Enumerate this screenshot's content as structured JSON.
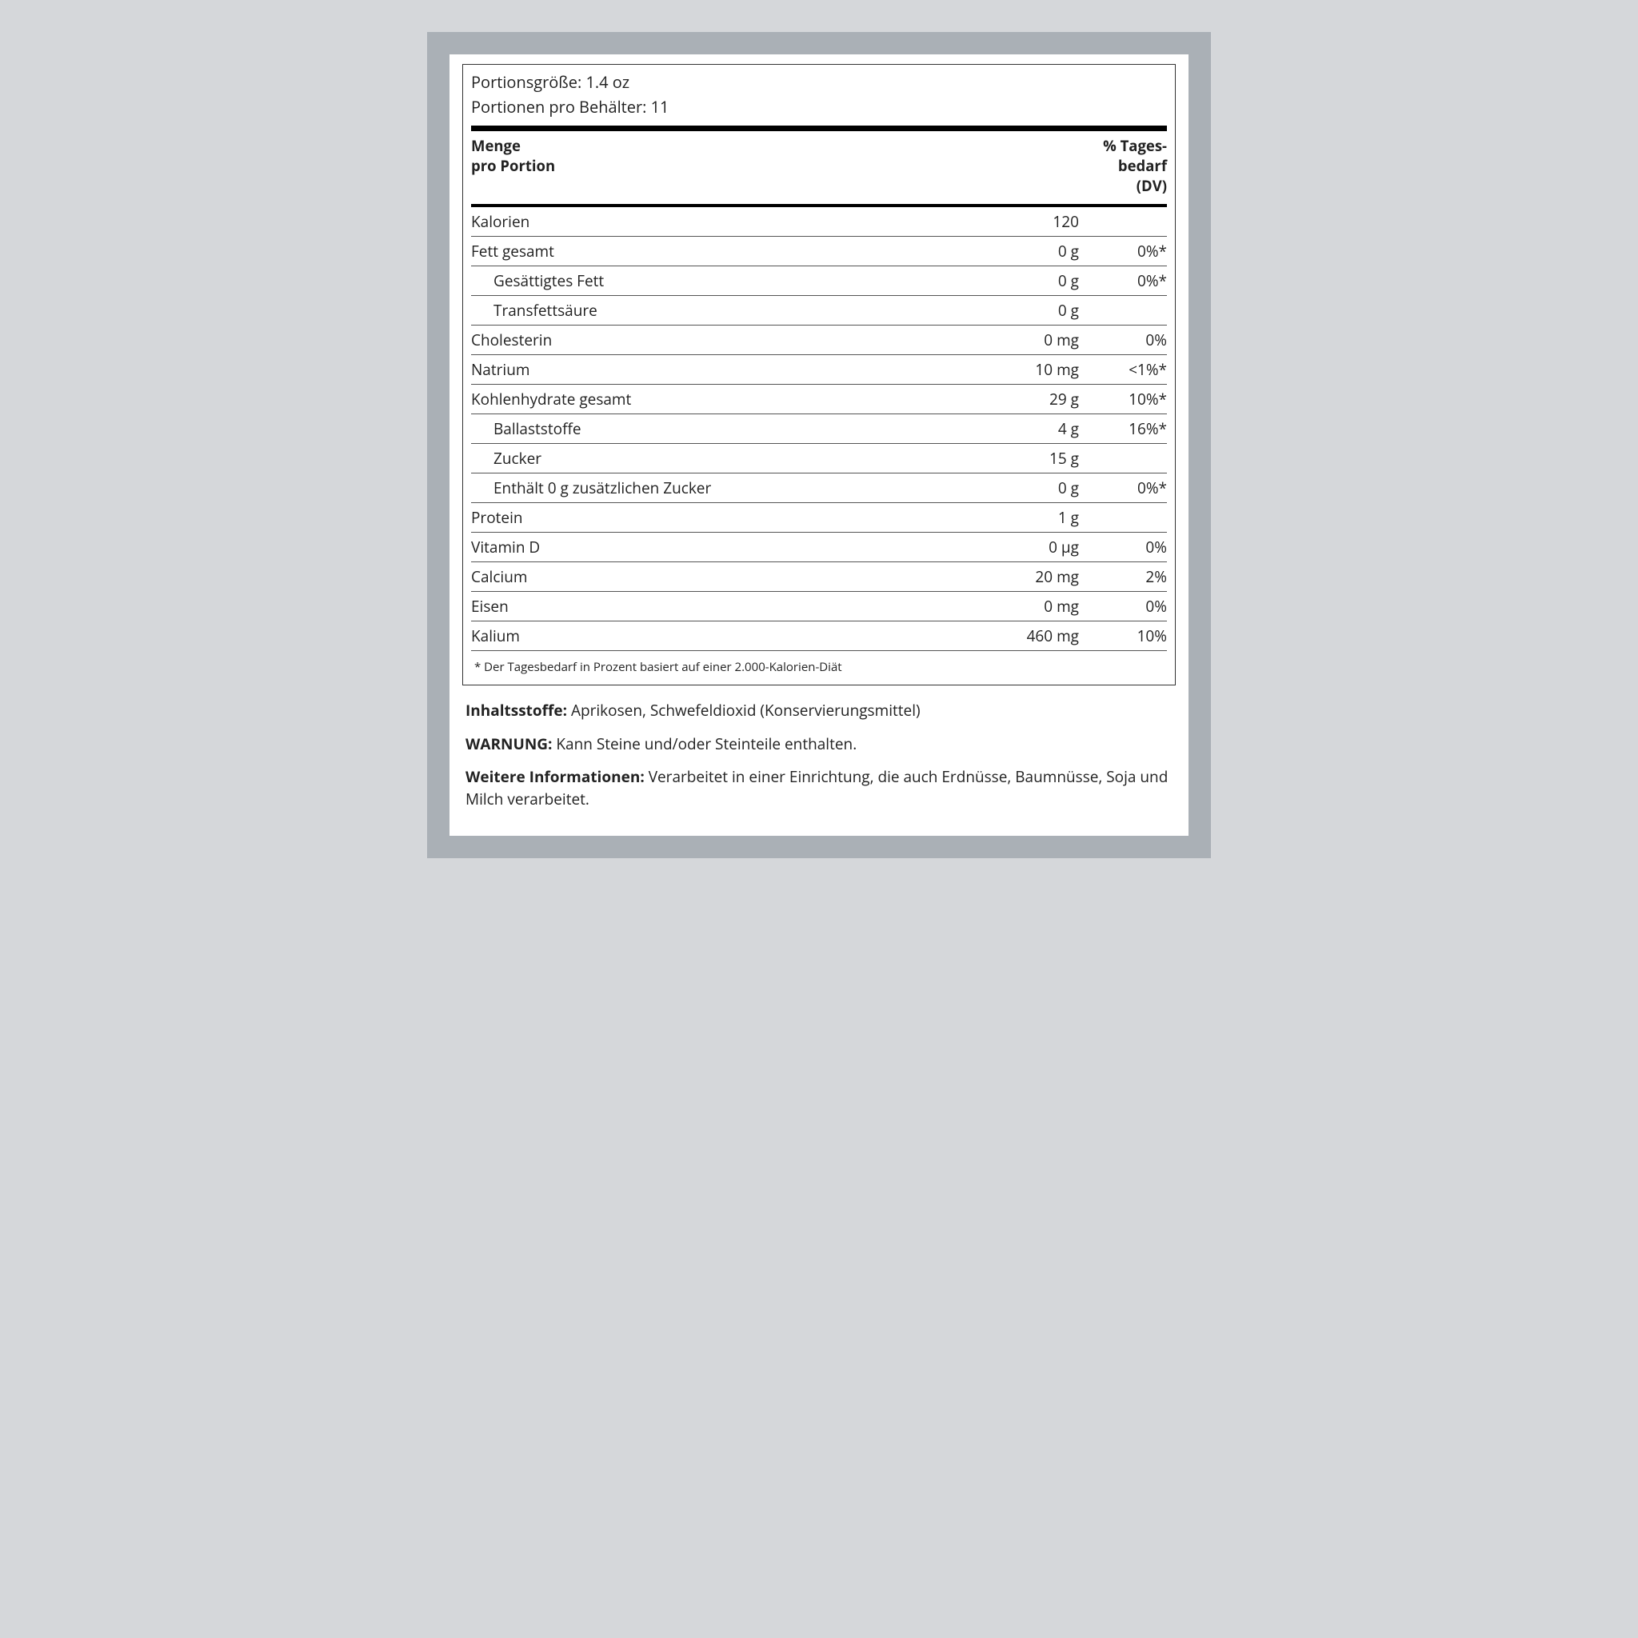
{
  "serving": {
    "size_label": "Portionsgröße:",
    "size_value": "1.4 oz",
    "per_container_label": "Portionen pro Behälter:",
    "per_container_value": "11"
  },
  "header": {
    "left": "Menge\npro Portion",
    "right": "% Tages-\nbedarf\n(DV)"
  },
  "rows": [
    {
      "label": "Kalorien",
      "amount": "120",
      "dv": "",
      "sub": false
    },
    {
      "label": "Fett gesamt",
      "amount": "0 g",
      "dv": "0%*",
      "sub": false
    },
    {
      "label": "Gesättigtes Fett",
      "amount": "0 g",
      "dv": "0%*",
      "sub": true
    },
    {
      "label": "Transfettsäure",
      "amount": "0 g",
      "dv": "",
      "sub": true
    },
    {
      "label": "Cholesterin",
      "amount": "0 mg",
      "dv": "0%",
      "sub": false
    },
    {
      "label": "Natrium",
      "amount": "10 mg",
      "dv": "<1%*",
      "sub": false
    },
    {
      "label": "Kohlenhydrate gesamt",
      "amount": "29 g",
      "dv": "10%*",
      "sub": false
    },
    {
      "label": "Ballaststoffe",
      "amount": "4 g",
      "dv": "16%*",
      "sub": true
    },
    {
      "label": "Zucker",
      "amount": "15 g",
      "dv": "",
      "sub": true
    },
    {
      "label": "Enthält 0 g zusätzlichen Zucker",
      "amount": "0 g",
      "dv": "0%*",
      "sub": true
    },
    {
      "label": "Protein",
      "amount": "1 g",
      "dv": "",
      "sub": false
    },
    {
      "label": "Vitamin D",
      "amount": "0 µg",
      "dv": "0%",
      "sub": false
    },
    {
      "label": "Calcium",
      "amount": "20 mg",
      "dv": "2%",
      "sub": false
    },
    {
      "label": "Eisen",
      "amount": "0 mg",
      "dv": "0%",
      "sub": false
    },
    {
      "label": "Kalium",
      "amount": "460 mg",
      "dv": "10%",
      "sub": false
    }
  ],
  "footnote": "* Der Tagesbedarf in Prozent basiert auf einer 2.000-Kalorien-Diät",
  "ingredients": {
    "label": "Inhaltsstoffe:",
    "text": "Aprikosen, Schwefeldioxid (Konservierungsmittel)"
  },
  "warning": {
    "label": "WARNUNG:",
    "text": "Kann Steine und/oder Steinteile enthalten."
  },
  "moreinfo": {
    "label": "Weitere Informationen:",
    "text": "Verarbeitet in einer Einrichtung, die auch Erdnüsse, Baumnüsse, Soja und Milch verarbeitet."
  }
}
